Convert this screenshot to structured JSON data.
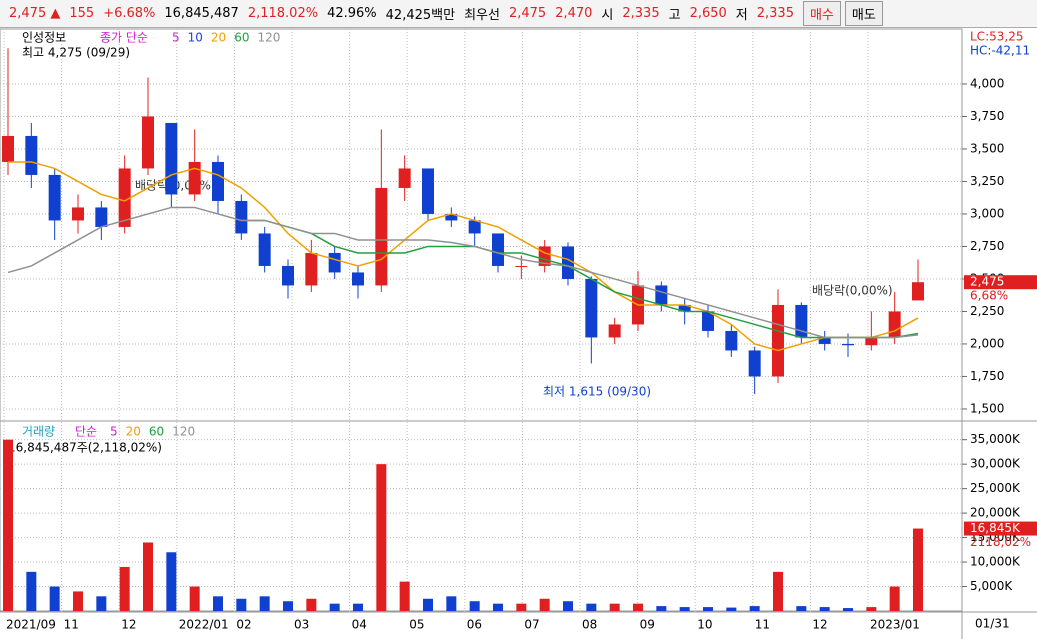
{
  "quote": {
    "price": "2,475 ▲",
    "change": "155",
    "change_pct": "+6.68%",
    "volume": "16,845,487",
    "volume_ratio": "2,118.02%",
    "ratio": "42.96%",
    "amount": "42,425백만",
    "best_label": "최우선",
    "best_ask": "2,475",
    "best_bid": "2,470",
    "open_label": "시",
    "open": "2,335",
    "high_label": "고",
    "high": "2,650",
    "low_label": "저",
    "low": "2,335",
    "buy": "매수",
    "sell": "매도"
  },
  "chart_data": [
    {
      "type": "candlestick",
      "title": "인성정보",
      "legend_title": "종가 단순",
      "legend": [
        {
          "name": "5",
          "color": "#d020d0"
        },
        {
          "name": "10",
          "color": "#2040e0"
        },
        {
          "name": "20",
          "color": "#f0a000"
        },
        {
          "name": "60",
          "color": "#20a040"
        },
        {
          "name": "120",
          "color": "#909090"
        }
      ],
      "max_label": "최고 4,275 (09/29)",
      "min_label": "최저 1,615 (09/30)",
      "dividend_labels": [
        "배당락(0,00%)",
        "배당락(0,00%)"
      ],
      "lc": "LC:53,25",
      "hc": "HC:-42,11",
      "last_label": "2,475",
      "last_pct": "6,68%",
      "opens": [
        3400,
        3600,
        3300,
        2950,
        3050,
        2900,
        3350,
        3700,
        3150,
        3400,
        3100,
        2850,
        2600,
        2450,
        2700,
        2550,
        2450,
        3200,
        3350,
        3000,
        2950,
        2850,
        2600,
        2600,
        2750,
        2500,
        2050,
        2150,
        2450,
        2300,
        2250,
        2100,
        1950,
        1750,
        2300,
        2050,
        2000,
        1990,
        2050,
        2335
      ],
      "highs": [
        4275,
        3700,
        3350,
        3150,
        3100,
        3450,
        4050,
        3700,
        3650,
        3450,
        3150,
        2900,
        2650,
        2800,
        2750,
        2600,
        3650,
        3450,
        3350,
        3050,
        2980,
        2850,
        2680,
        2800,
        2780,
        2520,
        2200,
        2560,
        2480,
        2350,
        2300,
        2150,
        1980,
        2420,
        2320,
        2100,
        2080,
        2250,
        2400,
        2650
      ],
      "lows": [
        3300,
        3200,
        2800,
        2850,
        2800,
        2850,
        3300,
        3050,
        3100,
        3000,
        2800,
        2550,
        2350,
        2400,
        2500,
        2350,
        2400,
        3100,
        2950,
        2900,
        2750,
        2550,
        2500,
        2550,
        2450,
        1850,
        2000,
        2100,
        2250,
        2150,
        2050,
        1900,
        1615,
        1700,
        2000,
        1950,
        1900,
        1950,
        2000,
        2335
      ],
      "closes": [
        3600,
        3300,
        2950,
        3050,
        2900,
        3350,
        3750,
        3150,
        3400,
        3100,
        2850,
        2600,
        2450,
        2700,
        2550,
        2450,
        3200,
        3350,
        3000,
        2950,
        2850,
        2600,
        2600,
        2750,
        2500,
        2050,
        2150,
        2450,
        2300,
        2250,
        2100,
        1950,
        1750,
        2300,
        2050,
        2000,
        1990,
        2050,
        2250,
        2475
      ],
      "series": [
        {
          "color": "#f0a000",
          "values": [
            3400,
            3400,
            3350,
            3250,
            3150,
            3100,
            3200,
            3300,
            3350,
            3300,
            3200,
            3050,
            2850,
            2700,
            2650,
            2600,
            2650,
            2800,
            2950,
            3000,
            2950,
            2900,
            2800,
            2700,
            2650,
            2550,
            2400,
            2300,
            2300,
            2300,
            2250,
            2150,
            2000,
            1950,
            2000,
            2050,
            2050,
            2050,
            2100,
            2200
          ]
        },
        {
          "color": "#20a040",
          "values": [
            null,
            null,
            null,
            null,
            null,
            null,
            null,
            null,
            null,
            null,
            2950,
            2950,
            2900,
            2850,
            2750,
            2700,
            2700,
            2700,
            2750,
            2750,
            2750,
            2700,
            2700,
            2650,
            2600,
            2500,
            2400,
            2350,
            2300,
            2250,
            2250,
            2200,
            2150,
            2100,
            2050,
            2050,
            2050,
            2050,
            2050,
            2080
          ]
        },
        {
          "color": "#909090",
          "values": [
            2550,
            2600,
            2700,
            2800,
            2900,
            2950,
            3000,
            3050,
            3050,
            3000,
            2950,
            2950,
            2900,
            2850,
            2850,
            2800,
            2800,
            2800,
            2800,
            2780,
            2750,
            2700,
            2650,
            2620,
            2600,
            2550,
            2500,
            2450,
            2400,
            2350,
            2300,
            2250,
            2200,
            2150,
            2100,
            2050,
            2050,
            2050,
            2050,
            2070
          ]
        }
      ],
      "up_color": "#e02020",
      "down_color": "#1040d0",
      "ylim": [
        1415,
        4415
      ],
      "yticks": [
        {
          "value": 1500,
          "label": "1,500"
        },
        {
          "value": 1750,
          "label": "1,750"
        },
        {
          "value": 2000,
          "label": "2,000"
        },
        {
          "value": 2250,
          "label": "2,250"
        },
        {
          "value": 2500,
          "label": "2,500"
        },
        {
          "value": 2750,
          "label": "2,750"
        },
        {
          "value": 3000,
          "label": "3,000"
        },
        {
          "value": 3250,
          "label": "3,250"
        },
        {
          "value": 3500,
          "label": "3,500"
        },
        {
          "value": 3750,
          "label": "3,750"
        },
        {
          "value": 4000,
          "label": "4,000"
        }
      ],
      "grid": true
    },
    {
      "type": "bar",
      "title": "거래량",
      "legend_title": "단순",
      "legend": [
        {
          "name": "5",
          "color": "#d020d0"
        },
        {
          "name": "20",
          "color": "#f0a000"
        },
        {
          "name": "60",
          "color": "#20a040"
        },
        {
          "name": "120",
          "color": "#909090"
        }
      ],
      "info": "16,845,487주(2,118,02%)",
      "last_label": "16,845K",
      "last_pct": "2118,02%",
      "values": [
        35000,
        8000,
        5000,
        4000,
        3000,
        9000,
        14000,
        12000,
        5000,
        3000,
        2500,
        3000,
        2000,
        2500,
        1500,
        1500,
        30000,
        6000,
        2500,
        3000,
        2000,
        1500,
        1500,
        2500,
        2000,
        1500,
        1500,
        1500,
        1000,
        800,
        800,
        700,
        1000,
        8000,
        1000,
        800,
        600,
        800,
        5000,
        16845
      ],
      "ylim": [
        0,
        38000
      ],
      "yticks": [
        {
          "value": 5000,
          "label": "5,000K"
        },
        {
          "value": 10000,
          "label": "10,000K"
        },
        {
          "value": 15000,
          "label": "15,000K"
        },
        {
          "value": 20000,
          "label": "20,000K"
        },
        {
          "value": 25000,
          "label": "25,000K"
        },
        {
          "value": 30000,
          "label": "30,000K"
        },
        {
          "value": 35000,
          "label": "35,000K"
        }
      ],
      "x_labels": [
        "2021/09",
        "11",
        "12",
        "2022/01",
        "02",
        "03",
        "04",
        "05",
        "06",
        "07",
        "08",
        "09",
        "10",
        "11",
        "12",
        "2023/01"
      ],
      "x_end_label": "01/31",
      "grid": true
    }
  ]
}
